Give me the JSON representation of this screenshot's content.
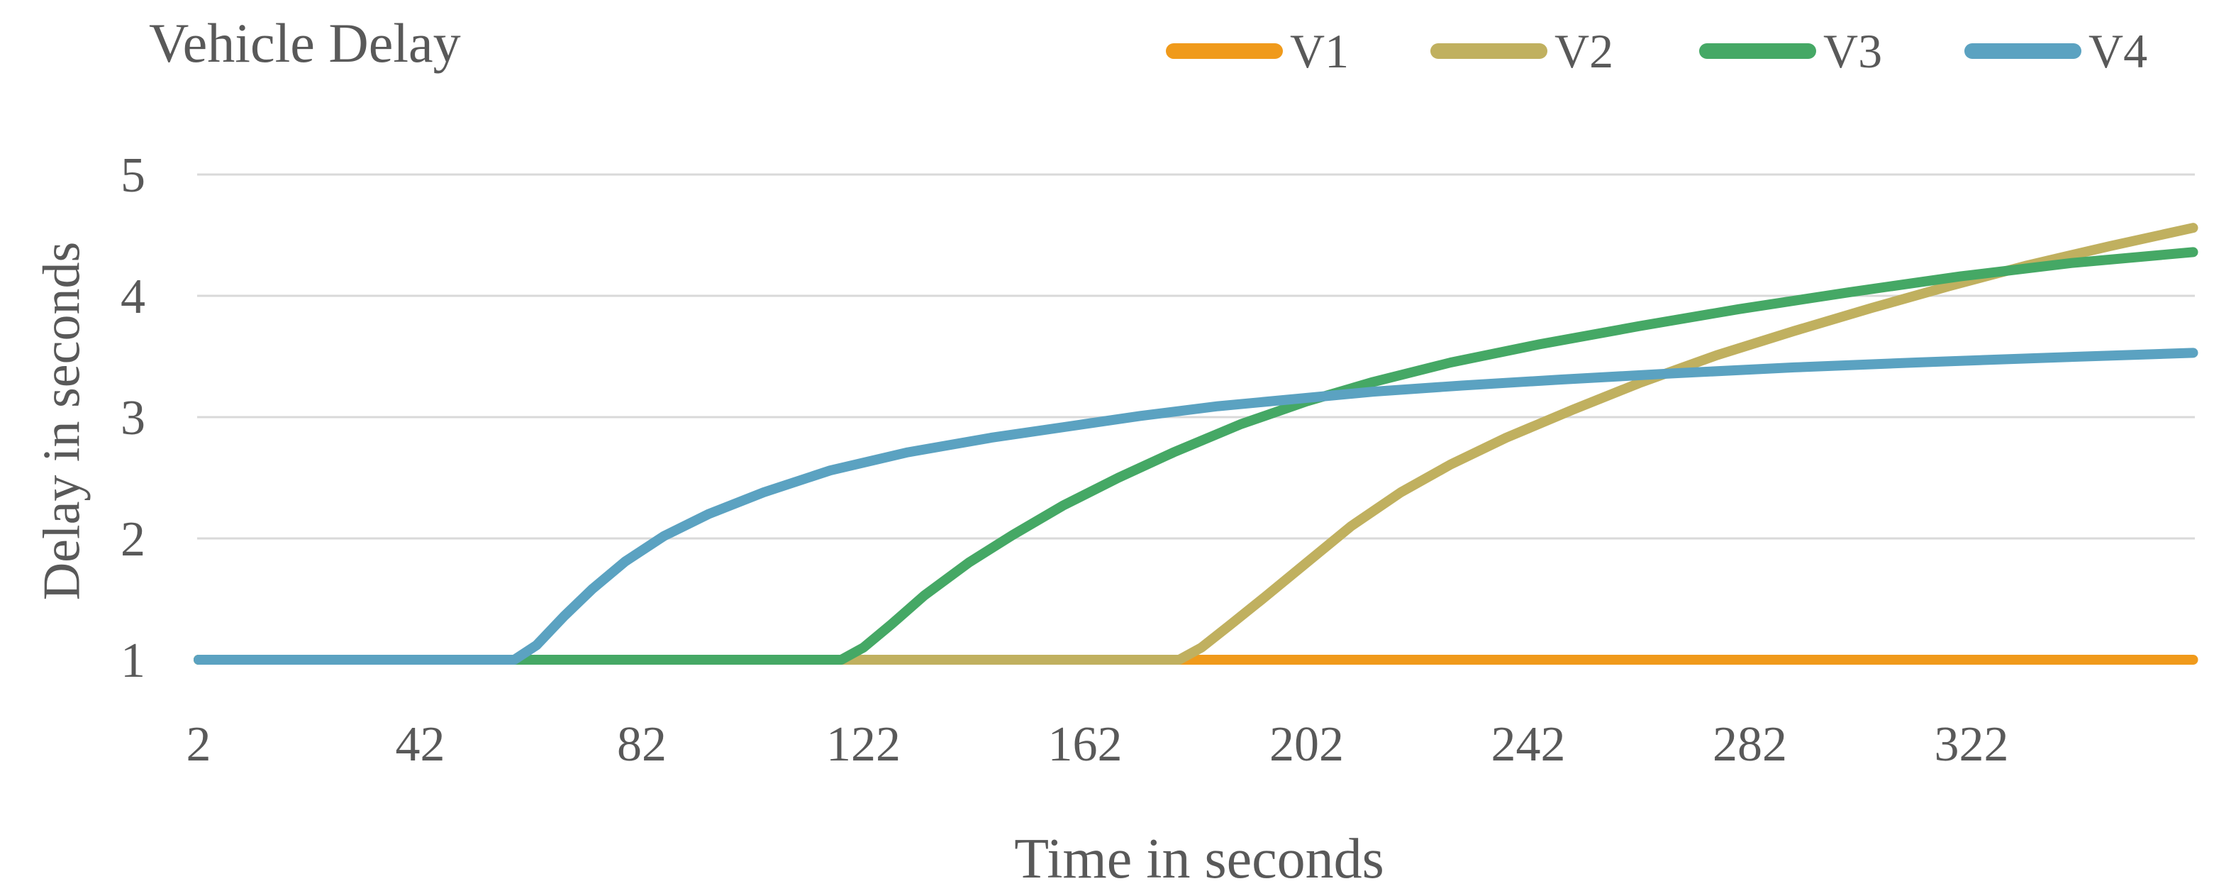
{
  "page": {
    "background": "#ffffff",
    "text_color": "#595959",
    "gridline_color": "#d9d9d9"
  },
  "chart_data": {
    "type": "line",
    "title": "Vehicle Delay",
    "xlabel": "Time in seconds",
    "ylabel": "Delay in seconds",
    "x_ticks": [
      2,
      42,
      82,
      122,
      162,
      202,
      242,
      282,
      322
    ],
    "y_ticks": [
      1,
      2,
      3,
      4,
      5
    ],
    "xlim": [
      2,
      362
    ],
    "ylim": [
      1,
      5
    ],
    "grid": "horizontal-only",
    "legend_position": "top-right",
    "line_width": 14,
    "series": [
      {
        "name": "V1",
        "color": "#F09A1B",
        "points": [
          [
            2,
            1
          ],
          [
            60,
            1
          ],
          [
            120,
            1
          ],
          [
            180,
            1
          ],
          [
            240,
            1
          ],
          [
            300,
            1
          ],
          [
            362,
            1
          ]
        ]
      },
      {
        "name": "V2",
        "color": "#C0B05F",
        "points": [
          [
            2,
            1
          ],
          [
            90,
            1
          ],
          [
            150,
            1
          ],
          [
            179,
            1
          ],
          [
            183,
            1.1
          ],
          [
            188,
            1.28
          ],
          [
            194,
            1.5
          ],
          [
            202,
            1.8
          ],
          [
            210,
            2.1
          ],
          [
            219,
            2.38
          ],
          [
            228,
            2.61
          ],
          [
            238,
            2.83
          ],
          [
            250,
            3.06
          ],
          [
            262,
            3.28
          ],
          [
            276,
            3.51
          ],
          [
            290,
            3.71
          ],
          [
            304,
            3.9
          ],
          [
            318,
            4.08
          ],
          [
            332,
            4.25
          ],
          [
            347,
            4.41
          ],
          [
            362,
            4.56
          ]
        ]
      },
      {
        "name": "V3",
        "color": "#45A865",
        "points": [
          [
            2,
            1
          ],
          [
            60,
            1
          ],
          [
            118,
            1
          ],
          [
            122,
            1.1
          ],
          [
            127,
            1.29
          ],
          [
            133,
            1.53
          ],
          [
            141,
            1.8
          ],
          [
            149,
            2.03
          ],
          [
            158,
            2.27
          ],
          [
            168,
            2.5
          ],
          [
            178,
            2.71
          ],
          [
            190,
            2.94
          ],
          [
            202,
            3.13
          ],
          [
            214,
            3.29
          ],
          [
            228,
            3.45
          ],
          [
            244,
            3.6
          ],
          [
            262,
            3.75
          ],
          [
            280,
            3.89
          ],
          [
            300,
            4.03
          ],
          [
            320,
            4.16
          ],
          [
            340,
            4.27
          ],
          [
            362,
            4.36
          ]
        ]
      },
      {
        "name": "V4",
        "color": "#5BA2C1",
        "points": [
          [
            2,
            1
          ],
          [
            30,
            1
          ],
          [
            59,
            1
          ],
          [
            63,
            1.12
          ],
          [
            68,
            1.36
          ],
          [
            73,
            1.58
          ],
          [
            79,
            1.81
          ],
          [
            86,
            2.02
          ],
          [
            94,
            2.2
          ],
          [
            104,
            2.38
          ],
          [
            116,
            2.56
          ],
          [
            130,
            2.71
          ],
          [
            145,
            2.83
          ],
          [
            160,
            2.93
          ],
          [
            172,
            3.01
          ],
          [
            186,
            3.09
          ],
          [
            200,
            3.15
          ],
          [
            214,
            3.21
          ],
          [
            230,
            3.26
          ],
          [
            248,
            3.31
          ],
          [
            268,
            3.36
          ],
          [
            290,
            3.41
          ],
          [
            312,
            3.45
          ],
          [
            336,
            3.49
          ],
          [
            362,
            3.53
          ]
        ]
      }
    ]
  }
}
